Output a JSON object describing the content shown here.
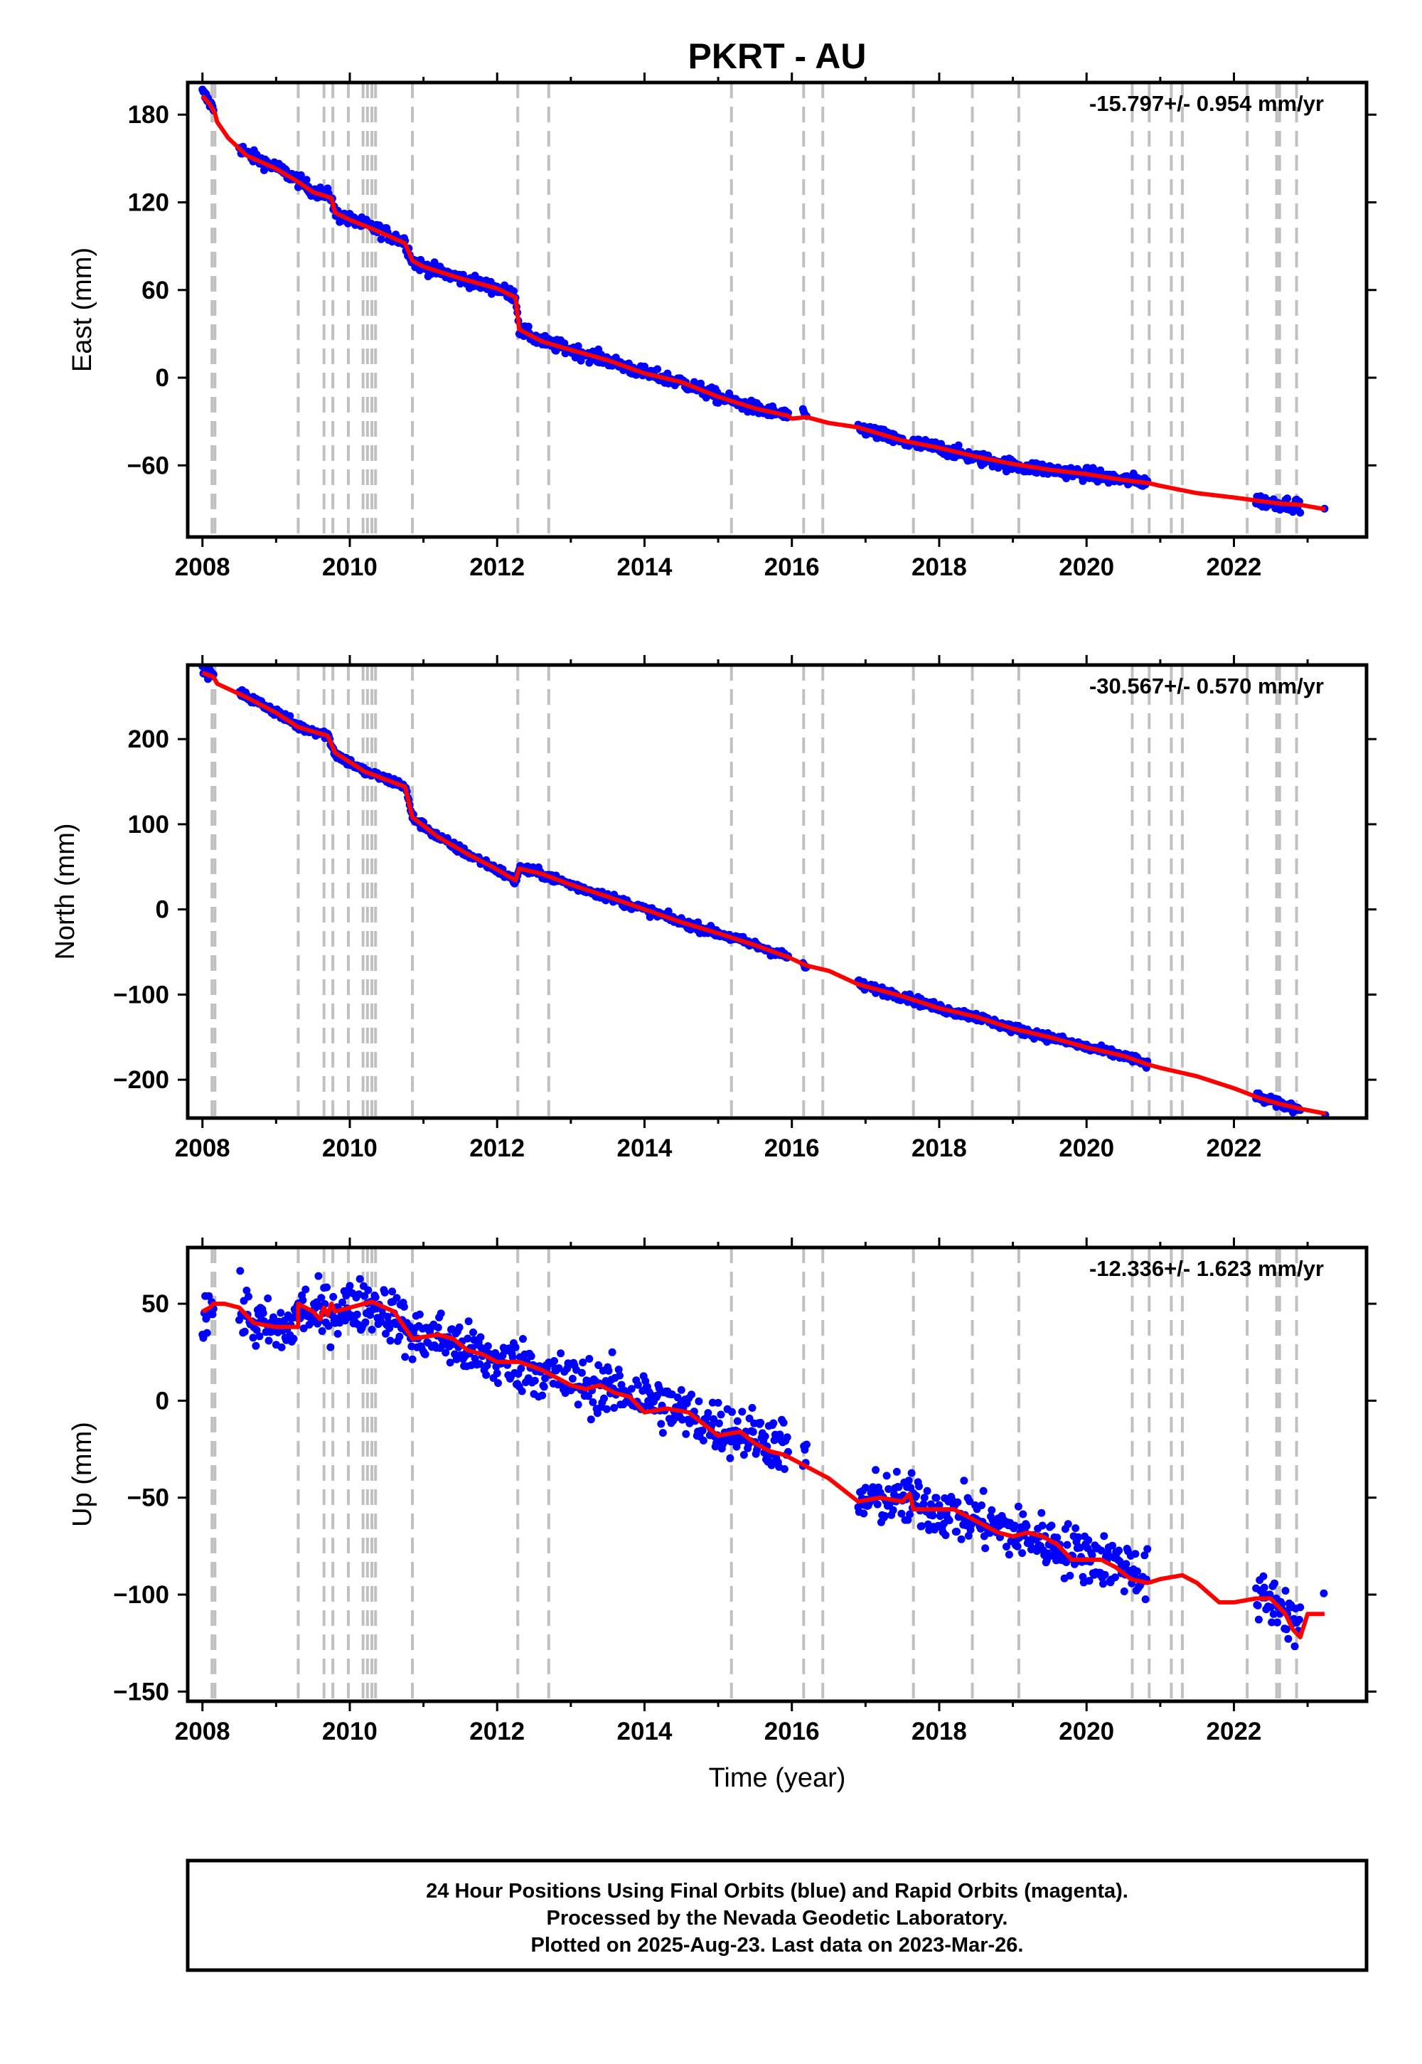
{
  "title": "PKRT - AU",
  "footer": {
    "line1": "24 Hour Positions Using Final Orbits (blue) and Rapid Orbits (magenta).",
    "line2": "Processed by the Nevada Geodetic Laboratory.",
    "line3": "Plotted on 2025-Aug-23. Last data on 2023-Mar-26."
  },
  "colors": {
    "final_orbits": "#0000ff",
    "model": "#ff0000",
    "events": "#c0c0c0",
    "frame": "#000000"
  },
  "chart_data": [
    {
      "type": "scatter",
      "panel": "east",
      "ylabel": "East (mm)",
      "xlabel": "",
      "xlim": [
        2007.8,
        2023.8
      ],
      "ylim": [
        -109,
        202
      ],
      "xticks": [
        2008,
        2010,
        2012,
        2014,
        2016,
        2018,
        2020,
        2022
      ],
      "xtick_labels": [
        "2008",
        "2010",
        "2012",
        "2014",
        "2016",
        "2018",
        "2020",
        "2022"
      ],
      "yticks": [
        180,
        120,
        60,
        0,
        -60
      ],
      "ytick_labels": [
        "180",
        "120",
        "60",
        "0",
        "−60"
      ],
      "rate": "-15.797+/- 0.954 mm/yr",
      "grid": false,
      "series": [
        {
          "kind": "points",
          "color": "#0000ff",
          "scatter": 2.2,
          "segments": [
            [
              2008.0,
              2008.15
            ],
            [
              2008.5,
              2015.95
            ],
            [
              2016.15,
              2016.2
            ],
            [
              2016.9,
              2020.83
            ],
            [
              2022.3,
              2022.9
            ],
            [
              2023.23,
              2023.24
            ]
          ],
          "x": [
            2008.0,
            2008.1,
            2008.17,
            2008.2,
            2008.35,
            2008.6,
            2009.0,
            2009.3,
            2009.5,
            2009.75,
            2009.8,
            2010.0,
            2010.3,
            2010.75,
            2010.85,
            2011.0,
            2011.5,
            2012.0,
            2012.25,
            2012.3,
            2012.6,
            2013.0,
            2013.5,
            2014.0,
            2014.5,
            2015.0,
            2015.5,
            2015.95,
            2016.2,
            2016.9,
            2017.5,
            2018.0,
            2018.5,
            2019.0,
            2019.5,
            2020.0,
            2020.5,
            2020.83,
            2022.3,
            2022.6,
            2022.9,
            2023.24
          ],
          "y": [
            195,
            188,
            182,
            176,
            166,
            153,
            144,
            135,
            128,
            124,
            112,
            108,
            103,
            93,
            80,
            76,
            68,
            61,
            56,
            33,
            25,
            19,
            12,
            3,
            -3,
            -13,
            -21,
            -26,
            -27,
            -34,
            -44,
            -48,
            -55,
            -60,
            -63,
            -66,
            -70,
            -71,
            -84,
            -86,
            -87,
            -90
          ]
        },
        {
          "kind": "line",
          "color": "#ff0000",
          "x": [
            2008.0,
            2008.1,
            2008.17,
            2008.2,
            2008.35,
            2008.6,
            2009.0,
            2009.3,
            2009.5,
            2009.75,
            2009.8,
            2010.0,
            2010.3,
            2010.75,
            2010.85,
            2011.0,
            2011.5,
            2012.0,
            2012.25,
            2012.3,
            2012.6,
            2013.0,
            2013.5,
            2014.0,
            2014.5,
            2015.0,
            2015.5,
            2015.95,
            2016.0,
            2016.2,
            2016.5,
            2016.9,
            2017.5,
            2018.0,
            2018.5,
            2019.0,
            2019.5,
            2020.0,
            2020.5,
            2020.83,
            2021.0,
            2021.5,
            2022.0,
            2022.3,
            2022.6,
            2022.9,
            2023.24
          ],
          "y": [
            193,
            187,
            181,
            175,
            164,
            152,
            143,
            134,
            127,
            123,
            113,
            108,
            102,
            92,
            80,
            76,
            68,
            61,
            55,
            33,
            25,
            19,
            12,
            3,
            -3,
            -13,
            -21,
            -26,
            -28,
            -27,
            -31,
            -34,
            -43,
            -48,
            -54,
            -59,
            -63,
            -66,
            -70,
            -72,
            -74,
            -79,
            -82,
            -84,
            -86,
            -87,
            -90
          ]
        }
      ]
    },
    {
      "type": "scatter",
      "panel": "north",
      "ylabel": "North (mm)",
      "xlabel": "",
      "xlim": [
        2007.8,
        2023.8
      ],
      "ylim": [
        -245,
        287
      ],
      "xticks": [
        2008,
        2010,
        2012,
        2014,
        2016,
        2018,
        2020,
        2022
      ],
      "xtick_labels": [
        "2008",
        "2010",
        "2012",
        "2014",
        "2016",
        "2018",
        "2020",
        "2022"
      ],
      "yticks": [
        200,
        100,
        0,
        -100,
        -200
      ],
      "ytick_labels": [
        "200",
        "100",
        "0",
        "−100",
        "−200"
      ],
      "rate": "-30.567+/- 0.570 mm/yr",
      "grid": false,
      "series": [
        {
          "kind": "points",
          "color": "#0000ff",
          "scatter": 2.6,
          "segments": [
            [
              2008.0,
              2008.15
            ],
            [
              2008.5,
              2015.95
            ],
            [
              2016.15,
              2016.2
            ],
            [
              2016.9,
              2020.83
            ],
            [
              2022.3,
              2022.9
            ],
            [
              2023.24,
              2023.25
            ]
          ],
          "x": [
            2008.0,
            2008.15,
            2008.2,
            2008.6,
            2009.0,
            2009.3,
            2009.7,
            2009.8,
            2010.2,
            2010.75,
            2010.85,
            2011.2,
            2011.6,
            2012.0,
            2012.25,
            2012.3,
            2012.6,
            2013.0,
            2013.5,
            2014.0,
            2014.5,
            2015.0,
            2015.5,
            2015.95,
            2016.2,
            2016.9,
            2017.5,
            2018.0,
            2018.5,
            2019.0,
            2019.5,
            2020.0,
            2020.5,
            2020.83,
            2022.3,
            2022.6,
            2022.9,
            2023.25
          ],
          "y": [
            280,
            274,
            266,
            250,
            232,
            215,
            205,
            183,
            162,
            145,
            108,
            85,
            65,
            47,
            33,
            48,
            42,
            29,
            15,
            0,
            -15,
            -28,
            -42,
            -56,
            -67,
            -88,
            -102,
            -116,
            -126,
            -140,
            -150,
            -162,
            -172,
            -182,
            -220,
            -228,
            -234,
            -240
          ]
        },
        {
          "kind": "line",
          "color": "#ff0000",
          "x": [
            2008.0,
            2008.15,
            2008.2,
            2008.6,
            2009.0,
            2009.3,
            2009.7,
            2009.8,
            2010.2,
            2010.75,
            2010.85,
            2011.2,
            2011.6,
            2012.0,
            2012.25,
            2012.3,
            2012.6,
            2013.0,
            2013.5,
            2014.0,
            2014.5,
            2015.0,
            2015.5,
            2015.95,
            2016.1,
            2016.2,
            2016.5,
            2016.9,
            2017.5,
            2018.0,
            2018.5,
            2019.0,
            2019.5,
            2020.0,
            2020.5,
            2020.83,
            2021.0,
            2021.5,
            2022.0,
            2022.3,
            2022.6,
            2022.9,
            2023.25
          ],
          "y": [
            278,
            273,
            265,
            249,
            231,
            214,
            204,
            184,
            162,
            144,
            108,
            85,
            65,
            47,
            34,
            48,
            42,
            29,
            15,
            0,
            -15,
            -28,
            -42,
            -56,
            -62,
            -66,
            -72,
            -88,
            -102,
            -116,
            -126,
            -140,
            -150,
            -162,
            -172,
            -182,
            -186,
            -196,
            -210,
            -220,
            -228,
            -234,
            -240
          ]
        }
      ]
    },
    {
      "type": "scatter",
      "panel": "up",
      "ylabel": "Up (mm)",
      "xlabel": "Time (year)",
      "xlim": [
        2007.8,
        2023.8
      ],
      "ylim": [
        -155,
        79
      ],
      "xticks": [
        2008,
        2010,
        2012,
        2014,
        2016,
        2018,
        2020,
        2022
      ],
      "xtick_labels": [
        "2008",
        "2010",
        "2012",
        "2014",
        "2016",
        "2018",
        "2020",
        "2022"
      ],
      "yticks": [
        50,
        0,
        -50,
        -100,
        -150
      ],
      "ytick_labels": [
        "50",
        "0",
        "−50",
        "−100",
        "−150"
      ],
      "rate": "-12.336+/- 1.623 mm/yr",
      "grid": false,
      "series": [
        {
          "kind": "points",
          "color": "#0000ff",
          "scatter": 7,
          "segments": [
            [
              2008.0,
              2008.15
            ],
            [
              2008.5,
              2015.95
            ],
            [
              2016.15,
              2016.2
            ],
            [
              2016.9,
              2020.83
            ],
            [
              2022.3,
              2022.9
            ],
            [
              2023.22,
              2023.23
            ]
          ],
          "x": [
            2008.0,
            2008.2,
            2008.5,
            2008.7,
            2009.0,
            2009.2,
            2009.35,
            2009.5,
            2009.7,
            2010.0,
            2010.3,
            2010.6,
            2010.85,
            2011.2,
            2011.6,
            2012.0,
            2012.4,
            2012.8,
            2013.2,
            2013.6,
            2014.0,
            2014.5,
            2014.9,
            2015.3,
            2015.7,
            2015.95,
            2016.2,
            2016.9,
            2017.3,
            2017.6,
            2018.0,
            2018.4,
            2018.7,
            2019.0,
            2019.4,
            2019.8,
            2020.2,
            2020.6,
            2020.83,
            2022.3,
            2022.6,
            2022.8,
            2022.9,
            2023.23
          ],
          "y": [
            44,
            50,
            48,
            40,
            36,
            38,
            48,
            44,
            46,
            48,
            50,
            44,
            33,
            33,
            26,
            20,
            18,
            12,
            8,
            6,
            2,
            -6,
            -12,
            -16,
            -20,
            -24,
            -34,
            -52,
            -50,
            -52,
            -56,
            -60,
            -64,
            -68,
            -72,
            -78,
            -82,
            -86,
            -92,
            -102,
            -104,
            -112,
            -120,
            -100
          ]
        },
        {
          "kind": "line",
          "color": "#ff0000",
          "x": [
            2008.0,
            2008.1,
            2008.15,
            2008.2,
            2008.3,
            2008.5,
            2008.7,
            2009.0,
            2009.3,
            2009.3,
            2009.5,
            2009.6,
            2009.65,
            2009.7,
            2009.75,
            2009.8,
            2010.0,
            2010.3,
            2010.6,
            2010.85,
            2011.2,
            2011.4,
            2011.6,
            2011.8,
            2012.0,
            2012.3,
            2012.6,
            2012.8,
            2013.0,
            2013.2,
            2013.4,
            2013.6,
            2013.8,
            2014.0,
            2014.3,
            2014.6,
            2014.8,
            2015.0,
            2015.3,
            2015.5,
            2015.7,
            2015.9,
            2016.2,
            2016.5,
            2016.9,
            2017.2,
            2017.5,
            2017.6,
            2017.65,
            2017.9,
            2018.2,
            2018.4,
            2018.6,
            2018.8,
            2019.0,
            2019.2,
            2019.4,
            2019.6,
            2019.8,
            2020.0,
            2020.2,
            2020.4,
            2020.6,
            2020.83,
            2021.0,
            2021.3,
            2021.5,
            2021.8,
            2022.0,
            2022.3,
            2022.5,
            2022.7,
            2022.8,
            2022.9,
            2023.0,
            2023.23
          ],
          "y": [
            46,
            48,
            50,
            50,
            50,
            48,
            40,
            38,
            38,
            50,
            46,
            42,
            48,
            44,
            50,
            46,
            48,
            51,
            46,
            32,
            34,
            32,
            26,
            24,
            20,
            20,
            16,
            12,
            8,
            6,
            8,
            4,
            2,
            -6,
            -4,
            -6,
            -12,
            -18,
            -16,
            -22,
            -26,
            -28,
            -34,
            -40,
            -52,
            -50,
            -52,
            -48,
            -56,
            -56,
            -56,
            -60,
            -64,
            -68,
            -70,
            -68,
            -70,
            -74,
            -82,
            -82,
            -82,
            -86,
            -92,
            -94,
            -92,
            -90,
            -94,
            -104,
            -104,
            -102,
            -102,
            -110,
            -118,
            -122,
            -110,
            -110
          ]
        }
      ]
    }
  ],
  "event_lines": [
    2008.13,
    2008.17,
    2009.3,
    2009.65,
    2009.77,
    2009.98,
    2010.18,
    2010.24,
    2010.3,
    2010.35,
    2010.85,
    2012.28,
    2012.7,
    2015.18,
    2016.16,
    2016.42,
    2017.65,
    2018.45,
    2019.08,
    2020.62,
    2020.85,
    2021.15,
    2021.3,
    2022.18,
    2022.58,
    2022.62,
    2022.85
  ]
}
